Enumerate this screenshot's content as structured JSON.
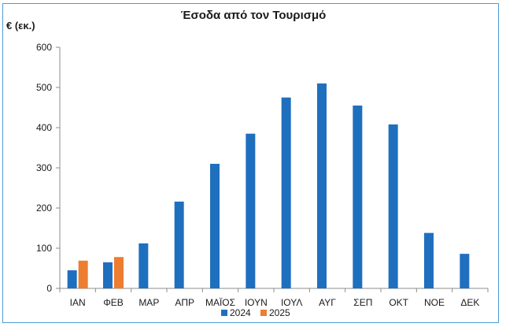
{
  "chart_data": {
    "type": "bar",
    "title": "Έσοδα από τον Τουρισμό",
    "ylabel": "€ (εκ.)",
    "xlabel": "",
    "ylim": [
      0,
      600
    ],
    "yticks": [
      0,
      100,
      200,
      300,
      400,
      500,
      600
    ],
    "grid": false,
    "legend_position": "bottom",
    "categories": [
      "ΙΑΝ",
      "ΦΕΒ",
      "ΜΑΡ",
      "ΑΠΡ",
      "ΜΑΪΟΣ",
      "ΙΟΥΝ",
      "ΙΟΥΛ",
      "ΑΥΓ",
      "ΣΕΠ",
      "ΟΚΤ",
      "ΝΟΕ",
      "ΔΕΚ"
    ],
    "series": [
      {
        "name": "2024",
        "color": "#1f6fbf",
        "values": [
          45,
          65,
          112,
          216,
          310,
          385,
          475,
          510,
          455,
          408,
          138,
          86
        ]
      },
      {
        "name": "2025",
        "color": "#ed7d31",
        "values": [
          69,
          78,
          null,
          null,
          null,
          null,
          null,
          null,
          null,
          null,
          null,
          null
        ]
      }
    ]
  }
}
